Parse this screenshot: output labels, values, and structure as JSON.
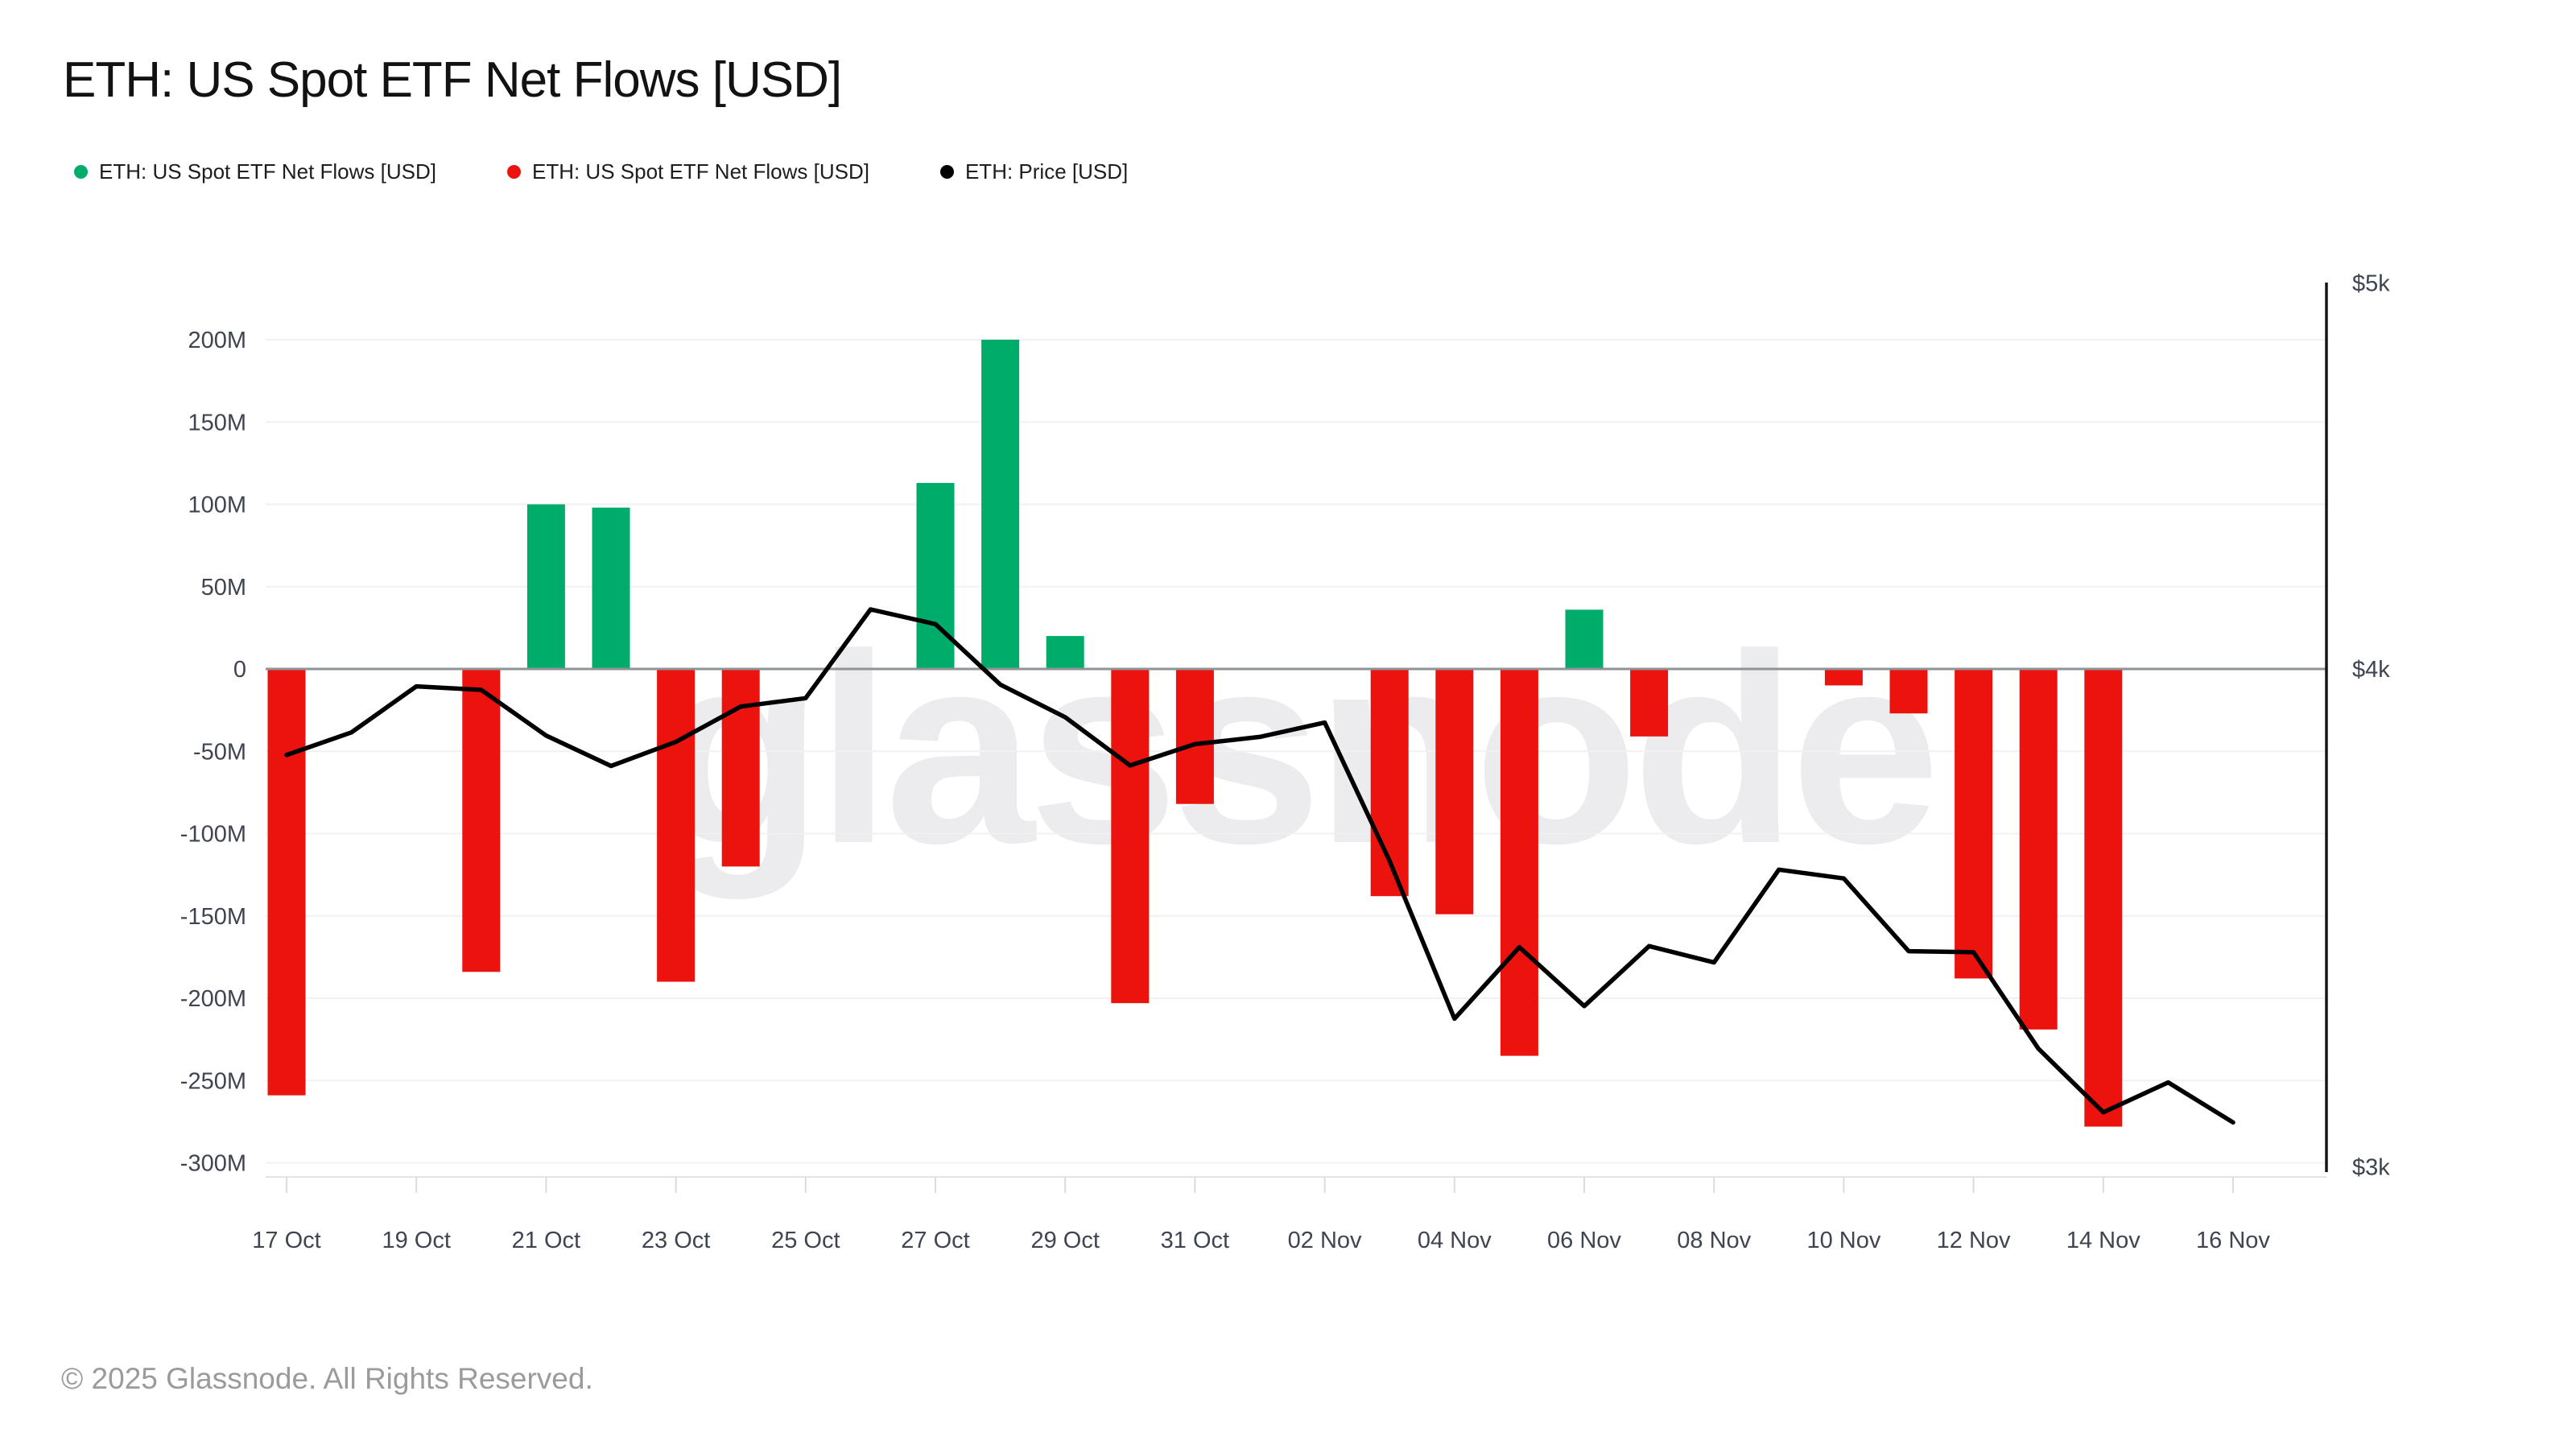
{
  "page": {
    "title": "ETH: US Spot ETF Net Flows [USD]",
    "watermark": "glassnode",
    "footer": "© 2025 Glassnode. All Rights Reserved.",
    "background": "#ffffff"
  },
  "legend": {
    "items": [
      {
        "label": "ETH: US Spot ETF Net Flows [USD]",
        "color": "#00ac69",
        "series": "netflow-inflow"
      },
      {
        "label": "ETH: US Spot ETF Net Flows [USD]",
        "color": "#ec120e",
        "series": "netflow-outflow"
      },
      {
        "label": "ETH: Price [USD]",
        "color": "#000000",
        "series": "price"
      }
    ]
  },
  "chart_data": {
    "type": "bar+line",
    "title": "ETH: US Spot ETF Net Flows [USD]",
    "categories": [
      "17 Oct",
      "18 Oct",
      "19 Oct",
      "20 Oct",
      "21 Oct",
      "22 Oct",
      "23 Oct",
      "24 Oct",
      "25 Oct",
      "26 Oct",
      "27 Oct",
      "28 Oct",
      "29 Oct",
      "30 Oct",
      "31 Oct",
      "01 Nov",
      "02 Nov",
      "03 Nov",
      "04 Nov",
      "05 Nov",
      "06 Nov",
      "07 Nov",
      "08 Nov",
      "09 Nov",
      "10 Nov",
      "11 Nov",
      "12 Nov",
      "13 Nov",
      "14 Nov",
      "15 Nov",
      "16 Nov"
    ],
    "x_tick_labels": [
      "17 Oct",
      "19 Oct",
      "21 Oct",
      "23 Oct",
      "25 Oct",
      "27 Oct",
      "29 Oct",
      "31 Oct",
      "02 Nov",
      "04 Nov",
      "06 Nov",
      "08 Nov",
      "10 Nov",
      "12 Nov",
      "14 Nov",
      "16 Nov"
    ],
    "series": [
      {
        "name": "ETH: US Spot ETF Net Flows [USD]",
        "type": "bar",
        "axis": "left",
        "unit": "USD millions",
        "positive_color": "#00ac69",
        "negative_color": "#ec120e",
        "values": [
          -259,
          null,
          null,
          -184,
          100,
          98,
          -190,
          -120,
          null,
          null,
          113,
          200,
          20,
          -203,
          -82,
          null,
          null,
          -138,
          -149,
          -235,
          36,
          -41,
          null,
          null,
          -10,
          -27,
          -188,
          -219,
          -278,
          null,
          null
        ]
      },
      {
        "name": "ETH: Price [USD]",
        "type": "line",
        "axis": "right",
        "unit": "USD",
        "color": "#000000",
        "values": [
          3806,
          3856,
          3960,
          3952,
          3849,
          3782,
          3835,
          3914,
          3933,
          4140,
          4105,
          3964,
          3890,
          3783,
          3830,
          3846,
          3878,
          3580,
          3268,
          3406,
          3292,
          3408,
          3376,
          3562,
          3544,
          3398,
          3396,
          3212,
          3096,
          3150,
          3078
        ]
      }
    ],
    "left_axis": {
      "unit": "USD millions",
      "tick_labels": [
        "200M",
        "150M",
        "100M",
        "50M",
        "0",
        "-50M",
        "-100M",
        "-150M",
        "-200M",
        "-250M",
        "-300M"
      ],
      "tick_values": [
        200,
        150,
        100,
        50,
        0,
        -50,
        -100,
        -150,
        -200,
        -250,
        -300
      ],
      "scale": "linear",
      "grid": true
    },
    "right_axis": {
      "unit": "USD",
      "tick_labels": [
        "$5k",
        "$4k",
        "$3k"
      ],
      "tick_values": [
        5000,
        4000,
        3000
      ],
      "scale": "log",
      "min": 3000,
      "max": 5000
    },
    "legend_position": "top-left",
    "colors": {
      "grid": "#f1f1f3",
      "zero_line": "#8f9297",
      "axis_line": "#151515",
      "bottom_border": "#e4e4e6",
      "x_tick_mark": "#dcdcde",
      "tick_label": "#3f4550",
      "watermark": "#ececee"
    }
  }
}
